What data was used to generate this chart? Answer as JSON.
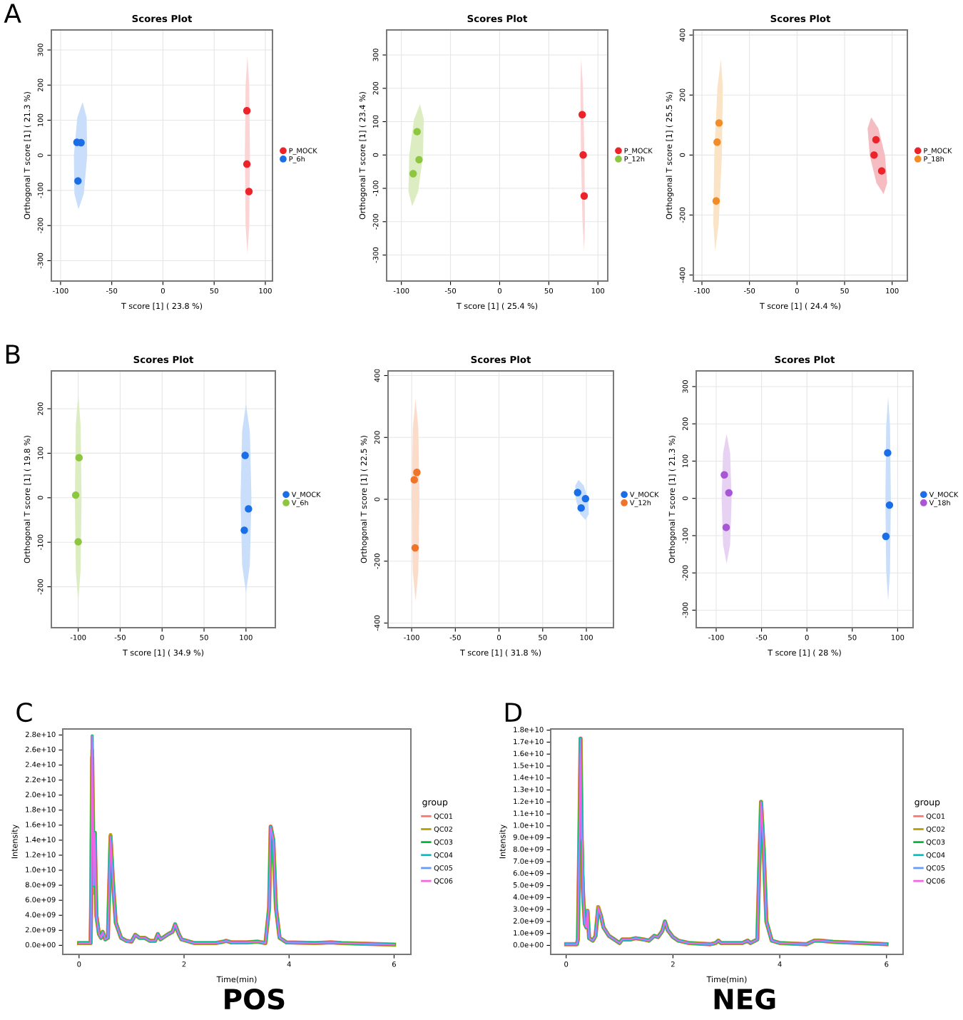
{
  "chart_data": [
    {
      "type": "scatter",
      "title": "Scores Plot",
      "xlabel": "T score [1] ( 23.8 %)",
      "ylabel": "Orthogonal T score [1] ( 21.3 %)",
      "annotations": [
        "A"
      ],
      "xlim": [
        -109,
        107
      ],
      "ylim": [
        -358,
        357
      ],
      "xticks": [
        -100,
        -50,
        0,
        50,
        100
      ],
      "yticks": [
        -300,
        -200,
        -100,
        0,
        100,
        200,
        300
      ],
      "grid": true,
      "legend": "right",
      "series": [
        {
          "type": "area",
          "color": "#c9defa",
          "x": [
            -74,
            -74.5,
            -78.5,
            -83.7,
            -87,
            -86.5,
            -82.5,
            -77.3
          ],
          "values": [
            -1,
            107,
            152,
            107,
            -1,
            -109,
            -154,
            -109
          ]
        },
        {
          "type": "area",
          "color": "#fbd5d6",
          "x": [
            85,
            84.3,
            82.5,
            80.7,
            80,
            80.7,
            82.5,
            84.3
          ],
          "values": [
            0,
            199,
            282,
            199,
            0,
            -199,
            -282,
            -199
          ]
        },
        {
          "name": "P_MOCK",
          "marker": "circle",
          "color": "#ee2229",
          "x": [
            82,
            82,
            84
          ],
          "values": [
            127,
            -25,
            -103
          ]
        },
        {
          "name": "P_6h",
          "marker": "circle",
          "color": "#1a6fe8",
          "x": [
            -84,
            -80,
            -83
          ],
          "values": [
            37,
            36,
            -73
          ]
        }
      ]
    },
    {
      "type": "scatter",
      "title": "Scores Plot",
      "xlabel": "T score [1] ( 25.4 %)",
      "ylabel": "Orthogonal T score [1] ( 23.4 %)",
      "xlim": [
        -115,
        110
      ],
      "ylim": [
        -378,
        375
      ],
      "xticks": [
        -100,
        -50,
        0,
        50,
        100
      ],
      "yticks": [
        -300,
        -200,
        -100,
        0,
        100,
        200,
        300
      ],
      "grid": true,
      "legend": "right",
      "series": [
        {
          "type": "area",
          "color": "#dcedc2",
          "x": [
            -78,
            -77.2,
            -81,
            -87.1,
            -92,
            -92.8,
            -89,
            -82.9
          ],
          "values": [
            -1,
            107,
            152,
            107,
            -1,
            -109,
            -154,
            -109
          ]
        },
        {
          "type": "area",
          "color": "#fbd5d6",
          "x": [
            86.3,
            84.7,
            83,
            82.2,
            82.7,
            84.3,
            86,
            86.8
          ],
          "values": [
            2,
            206,
            291,
            206,
            2,
            -202,
            -287,
            -202
          ]
        },
        {
          "name": "P_MOCK",
          "marker": "circle",
          "color": "#ee2229",
          "x": [
            84,
            85,
            86
          ],
          "values": [
            121,
            0,
            -123
          ]
        },
        {
          "name": "P_12h",
          "marker": "circle",
          "color": "#8dc63f",
          "x": [
            -84,
            -82,
            -88
          ],
          "values": [
            70,
            -14,
            -56
          ]
        }
      ]
    },
    {
      "type": "scatter",
      "title": "Scores Plot",
      "xlabel": "T score [1] ( 24.4 %)",
      "ylabel": "Orthogonal T score [1] ( 25.5 %)",
      "xlim": [
        -109,
        116
      ],
      "ylim": [
        -420,
        417
      ],
      "xticks": [
        -100,
        -50,
        0,
        50,
        100
      ],
      "yticks": [
        -400,
        -200,
        0,
        200,
        400
      ],
      "grid": true,
      "legend": "right",
      "series": [
        {
          "type": "area",
          "color": "#fbe3c6",
          "x": [
            -79,
            -78,
            -80,
            -83.7,
            -87,
            -88,
            -86,
            -82.3
          ],
          "values": [
            -1,
            225,
            319,
            225,
            -1,
            -227,
            -321,
            -227
          ]
        },
        {
          "type": "area",
          "color": "#f5bcc1",
          "x": [
            92.5,
            85.5,
            78,
            74.2,
            76.5,
            83.5,
            91,
            94.8
          ],
          "values": [
            -2,
            89,
            126,
            89,
            -2,
            -93,
            -130,
            -93
          ]
        },
        {
          "name": "P_MOCK",
          "marker": "circle",
          "color": "#ee2229",
          "x": [
            83,
            81,
            89
          ],
          "values": [
            51,
            0,
            -53
          ]
        },
        {
          "name": "P_18h",
          "marker": "circle",
          "color": "#f28c28",
          "x": [
            -82,
            -84,
            -85
          ],
          "values": [
            107,
            43,
            -153
          ]
        }
      ]
    },
    {
      "type": "scatter",
      "title": "Scores Plot",
      "xlabel": "T score [1] ( 34.9 %)",
      "ylabel": "Orthogonal T score [1] ( 19.8 %)",
      "annotations": [
        "B"
      ],
      "xlim": [
        -132,
        135
      ],
      "ylim": [
        -292,
        285
      ],
      "xticks": [
        -100,
        -50,
        0,
        50,
        100
      ],
      "yticks": [
        -200,
        -100,
        0,
        100,
        200
      ],
      "grid": true,
      "legend": "right",
      "series": [
        {
          "type": "area",
          "color": "#dcedc2",
          "x": [
            -96,
            -97.2,
            -100,
            -102.8,
            -104,
            -102.8,
            -100,
            -97.2
          ],
          "values": [
            0,
            165,
            234,
            165,
            0,
            -165,
            -234,
            -165
          ]
        },
        {
          "type": "area",
          "color": "#c9defa",
          "x": [
            106.5,
            104.6,
            100,
            95.4,
            93.5,
            95.4,
            100,
            104.6
          ],
          "values": [
            -1,
            149,
            211,
            149,
            -1,
            -151,
            -213,
            -151
          ]
        },
        {
          "name": "V_MOCK",
          "marker": "circle",
          "color": "#1a6fe8",
          "x": [
            99,
            103,
            98
          ],
          "values": [
            95,
            -25,
            -73
          ]
        },
        {
          "name": "V_6h",
          "marker": "circle",
          "color": "#8dc63f",
          "x": [
            -99,
            -103,
            -100
          ],
          "values": [
            90,
            6,
            -99
          ]
        }
      ]
    },
    {
      "type": "scatter",
      "title": "Scores Plot",
      "xlabel": "T score [1] ( 31.8 %)",
      "ylabel": "Orthogonal T score [1] ( 22.5 %)",
      "xlim": [
        -127,
        131
      ],
      "ylim": [
        -415,
        415
      ],
      "xticks": [
        -100,
        -50,
        0,
        50,
        100
      ],
      "yticks": [
        -400,
        -200,
        0,
        200,
        400
      ],
      "grid": true,
      "legend": "right",
      "series": [
        {
          "type": "area",
          "color": "#fbdccb",
          "x": [
            -91,
            -92.3,
            -95.5,
            -98.7,
            -100,
            -98.7,
            -95.5,
            -92.3
          ],
          "values": [
            -2,
            229,
            325,
            229,
            -2,
            -233,
            -329,
            -233
          ]
        },
        {
          "type": "area",
          "color": "#c9defa",
          "x": [
            102,
            97.1,
            91,
            87.2,
            88,
            92.9,
            99,
            102.8
          ],
          "values": [
            -2,
            44,
            63,
            44,
            -2,
            -48,
            -67,
            -48
          ]
        },
        {
          "name": "V_MOCK",
          "marker": "circle",
          "color": "#1a6fe8",
          "x": [
            90,
            99,
            94
          ],
          "values": [
            22,
            2,
            -28
          ]
        },
        {
          "name": "V_12h",
          "marker": "circle",
          "color": "#f0732a",
          "x": [
            -94,
            -97,
            -96
          ],
          "values": [
            87,
            63,
            -157
          ]
        }
      ]
    },
    {
      "type": "scatter",
      "title": "Scores Plot",
      "xlabel": "T score [1] ( 28 %)",
      "ylabel": "Orthogonal T score [1] ( 21.3 %)",
      "xlim": [
        -122,
        117
      ],
      "ylim": [
        -347,
        342
      ],
      "xticks": [
        -100,
        -50,
        0,
        50,
        100
      ],
      "yticks": [
        -300,
        -200,
        -100,
        0,
        100,
        200,
        300
      ],
      "grid": true,
      "legend": "right",
      "series": [
        {
          "type": "area",
          "color": "#e8d2f4",
          "x": [
            -83,
            -84.6,
            -88.5,
            -92.4,
            -94,
            -92.4,
            -88.5,
            -84.6
          ],
          "values": [
            -1,
            122,
            173,
            122,
            -1,
            -124,
            -175,
            -124
          ]
        },
        {
          "type": "area",
          "color": "#c9defa",
          "x": [
            92.5,
            91.6,
            89.5,
            87.4,
            86.5,
            87.4,
            89.5,
            91.6
          ],
          "values": [
            -1,
            193,
            273,
            193,
            -1,
            -195,
            -275,
            -195
          ]
        },
        {
          "name": "V_MOCK",
          "marker": "circle",
          "color": "#1a6fe8",
          "x": [
            89,
            91,
            87
          ],
          "values": [
            122,
            -18,
            -102
          ]
        },
        {
          "name": "V_18h",
          "marker": "circle",
          "color": "#a855d6",
          "x": [
            -91,
            -86,
            -89
          ],
          "values": [
            63,
            15,
            -78
          ]
        }
      ]
    },
    {
      "type": "line",
      "xlabel": "Time(min)",
      "ylabel": "Intensity",
      "legend_title": "group",
      "annotations": [
        "C",
        "POS"
      ],
      "xlim": [
        -0.31,
        6.32
      ],
      "ylim": [
        -1200000000.0,
        28800000000.0
      ],
      "xticks": [
        0,
        2,
        4,
        6
      ],
      "grid": false,
      "legend": "right",
      "yticks": [
        {
          "value": 0,
          "label": "0.0e+00"
        },
        {
          "value": 2000000000.0,
          "label": "2.0e+09"
        },
        {
          "value": 4000000000.0,
          "label": "4.0e+09"
        },
        {
          "value": 6000000000.0,
          "label": "6.0e+09"
        },
        {
          "value": 8000000000.0,
          "label": "8.0e+09"
        },
        {
          "value": 10000000000.0,
          "label": "1.0e+10"
        },
        {
          "value": 12000000000.0,
          "label": "1.2e+10"
        },
        {
          "value": 14000000000.0,
          "label": "1.4e+10"
        },
        {
          "value": 16000000000.0,
          "label": "1.6e+10"
        },
        {
          "value": 18000000000.0,
          "label": "1.8e+10"
        },
        {
          "value": 20000000000.0,
          "label": "2.0e+10"
        },
        {
          "value": 22000000000.0,
          "label": "2.2e+10"
        },
        {
          "value": 24000000000.0,
          "label": "2.4e+10"
        },
        {
          "value": 26000000000.0,
          "label": "2.6e+10"
        },
        {
          "value": 28000000000.0,
          "label": "2.8e+10"
        }
      ],
      "x": [
        0,
        0.22,
        0.23,
        0.25,
        0.28,
        0.3,
        0.33,
        0.38,
        0.42,
        0.45,
        0.5,
        0.55,
        0.6,
        0.65,
        0.7,
        0.8,
        0.9,
        1.0,
        1.07,
        1.15,
        1.25,
        1.35,
        1.45,
        1.5,
        1.55,
        1.7,
        1.78,
        1.83,
        1.9,
        1.95,
        2.05,
        2.2,
        2.6,
        2.75,
        2.8,
        2.9,
        3.2,
        3.4,
        3.55,
        3.62,
        3.65,
        3.7,
        3.75,
        3.82,
        3.95,
        4.5,
        4.8,
        5.0,
        6.0
      ],
      "series": [
        {
          "name": "QC01",
          "color": "#f8766d",
          "values": [
            300000000.0,
            300000000.0,
            5000000000.0,
            25000000000.0,
            7000000000.0,
            15000000000.0,
            4000000000.0,
            1500000000.0,
            1000000000.0,
            1800000000.0,
            800000000.0,
            1000000000.0,
            14500000000.0,
            8000000000.0,
            3000000000.0,
            1000000000.0,
            600000000.0,
            500000000.0,
            1400000000.0,
            1000000000.0,
            1000000000.0,
            600000000.0,
            600000000.0,
            1500000000.0,
            800000000.0,
            1500000000.0,
            1800000000.0,
            2800000000.0,
            1500000000.0,
            800000000.0,
            600000000.0,
            300000000.0,
            300000000.0,
            500000000.0,
            600000000.0,
            400000000.0,
            400000000.0,
            500000000.0,
            300000000.0,
            5000000000.0,
            15800000000.0,
            14000000000.0,
            5000000000.0,
            1000000000.0,
            400000000.0,
            300000000.0,
            400000000.0,
            300000000.0,
            100000000.0
          ]
        },
        {
          "name": "QC02",
          "color": "#b79f00",
          "values": [
            300000000.0,
            300000000.0,
            5000000000.0,
            26000000000.0,
            8000000000.0,
            15000000000.0,
            4000000000.0,
            1500000000.0,
            1000000000.0,
            1800000000.0,
            800000000.0,
            1000000000.0,
            14700000000.0,
            8000000000.0,
            3000000000.0,
            1000000000.0,
            600000000.0,
            500000000.0,
            1400000000.0,
            1000000000.0,
            1000000000.0,
            600000000.0,
            600000000.0,
            1500000000.0,
            800000000.0,
            1500000000.0,
            1800000000.0,
            2800000000.0,
            1500000000.0,
            800000000.0,
            600000000.0,
            300000000.0,
            300000000.0,
            500000000.0,
            600000000.0,
            400000000.0,
            400000000.0,
            500000000.0,
            300000000.0,
            5000000000.0,
            15800000000.0,
            14000000000.0,
            5000000000.0,
            1000000000.0,
            400000000.0,
            300000000.0,
            400000000.0,
            300000000.0,
            100000000.0
          ]
        },
        {
          "name": "QC03",
          "color": "#00ba38",
          "values": [
            300000000.0,
            300000000.0,
            5000000000.0,
            27900000000.0,
            8000000000.0,
            15000000000.0,
            4000000000.0,
            1500000000.0,
            1000000000.0,
            1800000000.0,
            800000000.0,
            1000000000.0,
            14000000000.0,
            8000000000.0,
            3000000000.0,
            1000000000.0,
            600000000.0,
            500000000.0,
            1400000000.0,
            1000000000.0,
            1000000000.0,
            600000000.0,
            600000000.0,
            1500000000.0,
            800000000.0,
            1500000000.0,
            1800000000.0,
            2800000000.0,
            1500000000.0,
            800000000.0,
            600000000.0,
            300000000.0,
            300000000.0,
            500000000.0,
            600000000.0,
            400000000.0,
            400000000.0,
            500000000.0,
            300000000.0,
            5000000000.0,
            15800000000.0,
            14000000000.0,
            5000000000.0,
            1000000000.0,
            400000000.0,
            300000000.0,
            400000000.0,
            300000000.0,
            100000000.0
          ]
        },
        {
          "name": "QC04",
          "color": "#00bfc4",
          "values": [
            300000000.0,
            300000000.0,
            5000000000.0,
            27000000000.0,
            8000000000.0,
            14500000000.0,
            4000000000.0,
            1500000000.0,
            1000000000.0,
            1800000000.0,
            800000000.0,
            1000000000.0,
            14500000000.0,
            8000000000.0,
            3000000000.0,
            1000000000.0,
            600000000.0,
            500000000.0,
            1400000000.0,
            1000000000.0,
            1000000000.0,
            600000000.0,
            600000000.0,
            1500000000.0,
            800000000.0,
            1500000000.0,
            1800000000.0,
            2800000000.0,
            1500000000.0,
            800000000.0,
            600000000.0,
            300000000.0,
            300000000.0,
            500000000.0,
            600000000.0,
            400000000.0,
            400000000.0,
            500000000.0,
            300000000.0,
            5000000000.0,
            15800000000.0,
            14000000000.0,
            5000000000.0,
            1000000000.0,
            400000000.0,
            300000000.0,
            400000000.0,
            300000000.0,
            100000000.0
          ]
        },
        {
          "name": "QC05",
          "color": "#619cff",
          "values": [
            300000000.0,
            300000000.0,
            5000000000.0,
            27900000000.0,
            8000000000.0,
            15000000000.0,
            4000000000.0,
            1500000000.0,
            1000000000.0,
            1800000000.0,
            800000000.0,
            1000000000.0,
            13800000000.0,
            8000000000.0,
            3000000000.0,
            1000000000.0,
            600000000.0,
            500000000.0,
            1400000000.0,
            1000000000.0,
            1000000000.0,
            600000000.0,
            600000000.0,
            1500000000.0,
            800000000.0,
            1500000000.0,
            1800000000.0,
            2800000000.0,
            1500000000.0,
            800000000.0,
            600000000.0,
            300000000.0,
            300000000.0,
            500000000.0,
            600000000.0,
            400000000.0,
            400000000.0,
            500000000.0,
            300000000.0,
            5000000000.0,
            15500000000.0,
            14000000000.0,
            5000000000.0,
            1000000000.0,
            400000000.0,
            300000000.0,
            400000000.0,
            300000000.0,
            100000000.0
          ]
        },
        {
          "name": "QC06",
          "color": "#f564e3",
          "values": [
            300000000.0,
            300000000.0,
            5000000000.0,
            27900000000.0,
            8000000000.0,
            15000000000.0,
            4000000000.0,
            1500000000.0,
            1000000000.0,
            1800000000.0,
            800000000.0,
            1000000000.0,
            14500000000.0,
            8000000000.0,
            3000000000.0,
            1000000000.0,
            600000000.0,
            500000000.0,
            1400000000.0,
            1000000000.0,
            1000000000.0,
            600000000.0,
            600000000.0,
            1500000000.0,
            800000000.0,
            1500000000.0,
            1800000000.0,
            2800000000.0,
            1500000000.0,
            800000000.0,
            600000000.0,
            300000000.0,
            300000000.0,
            500000000.0,
            600000000.0,
            400000000.0,
            400000000.0,
            500000000.0,
            300000000.0,
            5000000000.0,
            15800000000.0,
            14000000000.0,
            5000000000.0,
            1000000000.0,
            400000000.0,
            300000000.0,
            400000000.0,
            300000000.0,
            100000000.0
          ]
        }
      ]
    },
    {
      "type": "line",
      "xlabel": "Time(min)",
      "ylabel": "Intensity",
      "legend_title": "group",
      "annotations": [
        "D",
        "NEG"
      ],
      "xlim": [
        -0.29,
        6.31
      ],
      "ylim": [
        -750000000.0,
        18100000000.0
      ],
      "xticks": [
        0,
        2,
        4,
        6
      ],
      "grid": false,
      "legend": "right",
      "yticks": [
        {
          "value": 0,
          "label": "0.0e+00"
        },
        {
          "value": 1000000000.0,
          "label": "1.0e+09"
        },
        {
          "value": 2000000000.0,
          "label": "2.0e+09"
        },
        {
          "value": 3000000000.0,
          "label": "3.0e+09"
        },
        {
          "value": 4000000000.0,
          "label": "4.0e+09"
        },
        {
          "value": 5000000000.0,
          "label": "5.0e+09"
        },
        {
          "value": 6000000000.0,
          "label": "6.0e+09"
        },
        {
          "value": 7000000000.0,
          "label": "7.0e+09"
        },
        {
          "value": 8000000000.0,
          "label": "8.0e+09"
        },
        {
          "value": 9000000000.0,
          "label": "9.0e+09"
        },
        {
          "value": 10000000000.0,
          "label": "1.0e+10"
        },
        {
          "value": 11000000000.0,
          "label": "1.1e+10"
        },
        {
          "value": 12000000000.0,
          "label": "1.2e+10"
        },
        {
          "value": 13000000000.0,
          "label": "1.3e+10"
        },
        {
          "value": 14000000000.0,
          "label": "1.4e+10"
        },
        {
          "value": 15000000000.0,
          "label": "1.5e+10"
        },
        {
          "value": 16000000000.0,
          "label": "1.6e+10"
        },
        {
          "value": 17000000000.0,
          "label": "1.7e+10"
        },
        {
          "value": 18000000000.0,
          "label": "1.8e+10"
        }
      ],
      "x": [
        0,
        0.2,
        0.22,
        0.25,
        0.27,
        0.29,
        0.3,
        0.32,
        0.35,
        0.38,
        0.4,
        0.43,
        0.5,
        0.55,
        0.6,
        0.65,
        0.7,
        0.8,
        0.9,
        1.0,
        1.05,
        1.2,
        1.3,
        1.45,
        1.55,
        1.65,
        1.72,
        1.8,
        1.85,
        1.9,
        1.95,
        2.0,
        2.1,
        2.3,
        2.7,
        2.8,
        2.85,
        2.9,
        3.3,
        3.4,
        3.45,
        3.58,
        3.65,
        3.7,
        3.75,
        3.85,
        4.0,
        4.5,
        4.65,
        4.75,
        5.0,
        6.0
      ],
      "series": [
        {
          "name": "QC01",
          "color": "#f8766d",
          "values": [
            100000000.0,
            100000000.0,
            500000000.0,
            10000000000.0,
            17300000000.0,
            9000000000.0,
            6000000000.0,
            4000000000.0,
            1800000000.0,
            1500000000.0,
            2900000000.0,
            600000000.0,
            400000000.0,
            800000000.0,
            3200000000.0,
            2500000000.0,
            1500000000.0,
            800000000.0,
            500000000.0,
            200000000.0,
            500000000.0,
            500000000.0,
            600000000.0,
            500000000.0,
            400000000.0,
            800000000.0,
            700000000.0,
            1200000000.0,
            2000000000.0,
            1300000000.0,
            1000000000.0,
            700000000.0,
            400000000.0,
            200000000.0,
            100000000.0,
            200000000.0,
            400000000.0,
            200000000.0,
            200000000.0,
            400000000.0,
            200000000.0,
            500000000.0,
            12000000000.0,
            8000000000.0,
            2000000000.0,
            400000000.0,
            200000000.0,
            100000000.0,
            400000000.0,
            400000000.0,
            300000000.0,
            100000000.0
          ]
        },
        {
          "name": "QC02",
          "color": "#b79f00",
          "values": [
            100000000.0,
            100000000.0,
            500000000.0,
            10000000000.0,
            17300000000.0,
            9000000000.0,
            7000000000.0,
            4000000000.0,
            1800000000.0,
            1500000000.0,
            2900000000.0,
            600000000.0,
            400000000.0,
            800000000.0,
            3200000000.0,
            2500000000.0,
            1500000000.0,
            800000000.0,
            500000000.0,
            200000000.0,
            500000000.0,
            500000000.0,
            600000000.0,
            500000000.0,
            400000000.0,
            800000000.0,
            700000000.0,
            1200000000.0,
            2000000000.0,
            1300000000.0,
            1000000000.0,
            700000000.0,
            400000000.0,
            200000000.0,
            100000000.0,
            200000000.0,
            400000000.0,
            200000000.0,
            200000000.0,
            400000000.0,
            200000000.0,
            500000000.0,
            12000000000.0,
            8000000000.0,
            2000000000.0,
            400000000.0,
            200000000.0,
            100000000.0,
            400000000.0,
            400000000.0,
            300000000.0,
            100000000.0
          ]
        },
        {
          "name": "QC03",
          "color": "#00ba38",
          "values": [
            100000000.0,
            100000000.0,
            500000000.0,
            10000000000.0,
            17300000000.0,
            9000000000.0,
            8700000000.0,
            4000000000.0,
            1800000000.0,
            1500000000.0,
            2700000000.0,
            600000000.0,
            400000000.0,
            800000000.0,
            3000000000.0,
            2500000000.0,
            1500000000.0,
            800000000.0,
            500000000.0,
            200000000.0,
            500000000.0,
            500000000.0,
            600000000.0,
            500000000.0,
            400000000.0,
            800000000.0,
            700000000.0,
            1200000000.0,
            2000000000.0,
            1300000000.0,
            1000000000.0,
            700000000.0,
            400000000.0,
            200000000.0,
            100000000.0,
            200000000.0,
            400000000.0,
            200000000.0,
            200000000.0,
            400000000.0,
            200000000.0,
            500000000.0,
            12000000000.0,
            8000000000.0,
            2000000000.0,
            400000000.0,
            200000000.0,
            100000000.0,
            400000000.0,
            400000000.0,
            300000000.0,
            100000000.0
          ]
        },
        {
          "name": "QC04",
          "color": "#00bfc4",
          "values": [
            100000000.0,
            100000000.0,
            500000000.0,
            10000000000.0,
            17300000000.0,
            9000000000.0,
            8700000000.0,
            4000000000.0,
            1800000000.0,
            1500000000.0,
            2900000000.0,
            600000000.0,
            400000000.0,
            800000000.0,
            3100000000.0,
            2500000000.0,
            1500000000.0,
            800000000.0,
            500000000.0,
            200000000.0,
            500000000.0,
            500000000.0,
            600000000.0,
            500000000.0,
            400000000.0,
            800000000.0,
            700000000.0,
            1200000000.0,
            2000000000.0,
            1300000000.0,
            1000000000.0,
            700000000.0,
            400000000.0,
            200000000.0,
            100000000.0,
            200000000.0,
            400000000.0,
            200000000.0,
            200000000.0,
            400000000.0,
            200000000.0,
            500000000.0,
            12000000000.0,
            8000000000.0,
            2000000000.0,
            400000000.0,
            200000000.0,
            100000000.0,
            400000000.0,
            400000000.0,
            300000000.0,
            100000000.0
          ]
        },
        {
          "name": "QC05",
          "color": "#619cff",
          "values": [
            100000000.0,
            100000000.0,
            500000000.0,
            10000000000.0,
            16000000000.0,
            9000000000.0,
            8700000000.0,
            4000000000.0,
            1800000000.0,
            1500000000.0,
            2900000000.0,
            600000000.0,
            400000000.0,
            800000000.0,
            3200000000.0,
            2500000000.0,
            1500000000.0,
            800000000.0,
            500000000.0,
            200000000.0,
            500000000.0,
            500000000.0,
            600000000.0,
            500000000.0,
            400000000.0,
            800000000.0,
            700000000.0,
            1200000000.0,
            2000000000.0,
            1300000000.0,
            1000000000.0,
            700000000.0,
            400000000.0,
            200000000.0,
            100000000.0,
            200000000.0,
            400000000.0,
            200000000.0,
            200000000.0,
            400000000.0,
            200000000.0,
            500000000.0,
            12000000000.0,
            8000000000.0,
            2000000000.0,
            400000000.0,
            200000000.0,
            100000000.0,
            400000000.0,
            400000000.0,
            300000000.0,
            100000000.0
          ]
        },
        {
          "name": "QC06",
          "color": "#f564e3",
          "values": [
            100000000.0,
            100000000.0,
            500000000.0,
            10000000000.0,
            17300000000.0,
            9000000000.0,
            8700000000.0,
            4000000000.0,
            1800000000.0,
            1500000000.0,
            2900000000.0,
            600000000.0,
            400000000.0,
            800000000.0,
            3200000000.0,
            2500000000.0,
            1500000000.0,
            800000000.0,
            500000000.0,
            200000000.0,
            500000000.0,
            500000000.0,
            600000000.0,
            500000000.0,
            400000000.0,
            800000000.0,
            700000000.0,
            1200000000.0,
            2000000000.0,
            1300000000.0,
            1000000000.0,
            700000000.0,
            400000000.0,
            200000000.0,
            100000000.0,
            200000000.0,
            400000000.0,
            200000000.0,
            200000000.0,
            400000000.0,
            200000000.0,
            500000000.0,
            12000000000.0,
            8000000000.0,
            2000000000.0,
            400000000.0,
            200000000.0,
            100000000.0,
            400000000.0,
            400000000.0,
            300000000.0,
            100000000.0
          ]
        }
      ]
    }
  ]
}
